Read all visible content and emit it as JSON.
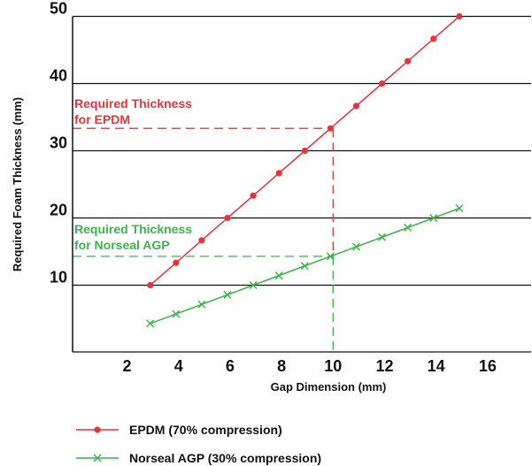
{
  "chart_data": {
    "type": "line",
    "xlabel": "Gap Dimension (mm)",
    "ylabel": "Required Foam Thickness (mm)",
    "x_ticks": [
      "2",
      "4",
      "6",
      "8",
      "10",
      "12",
      "14",
      "16"
    ],
    "y_ticks": [
      "10",
      "20",
      "30",
      "40",
      "50"
    ],
    "grid": "horizontal",
    "legend_position": "bottom",
    "series": [
      {
        "name": "EPDM (70% compression)",
        "color": "#e8333a",
        "marker": "dot",
        "x": [
          2.9,
          3.9,
          4.9,
          5.9,
          6.9,
          7.9,
          8.9,
          9.9,
          10.9,
          11.9,
          12.9,
          13.9,
          14.9
        ],
        "y": [
          10,
          13.33,
          16.67,
          20,
          23.33,
          26.67,
          30,
          33.33,
          36.67,
          40,
          43.33,
          46.67,
          50
        ]
      },
      {
        "name": "Norseal AGP (30% compression)",
        "color": "#3ab54a",
        "marker": "x",
        "x": [
          2.9,
          3.9,
          4.9,
          5.9,
          6.9,
          7.9,
          8.9,
          9.9,
          10.9,
          11.9,
          12.9,
          13.9,
          14.9
        ],
        "y": [
          4.29,
          5.71,
          7.14,
          8.57,
          10,
          11.43,
          12.86,
          14.29,
          15.71,
          17.14,
          18.57,
          20,
          21.43
        ]
      }
    ],
    "annotations": [
      {
        "line1": "Required Thickness",
        "line2": "for EPDM",
        "color": "#e8333a",
        "x": 10,
        "y": 33.33
      },
      {
        "line1": "Required Thickness",
        "line2": "for Norseal AGP",
        "color": "#3ab54a",
        "x": 10,
        "y": 14.29
      }
    ]
  }
}
